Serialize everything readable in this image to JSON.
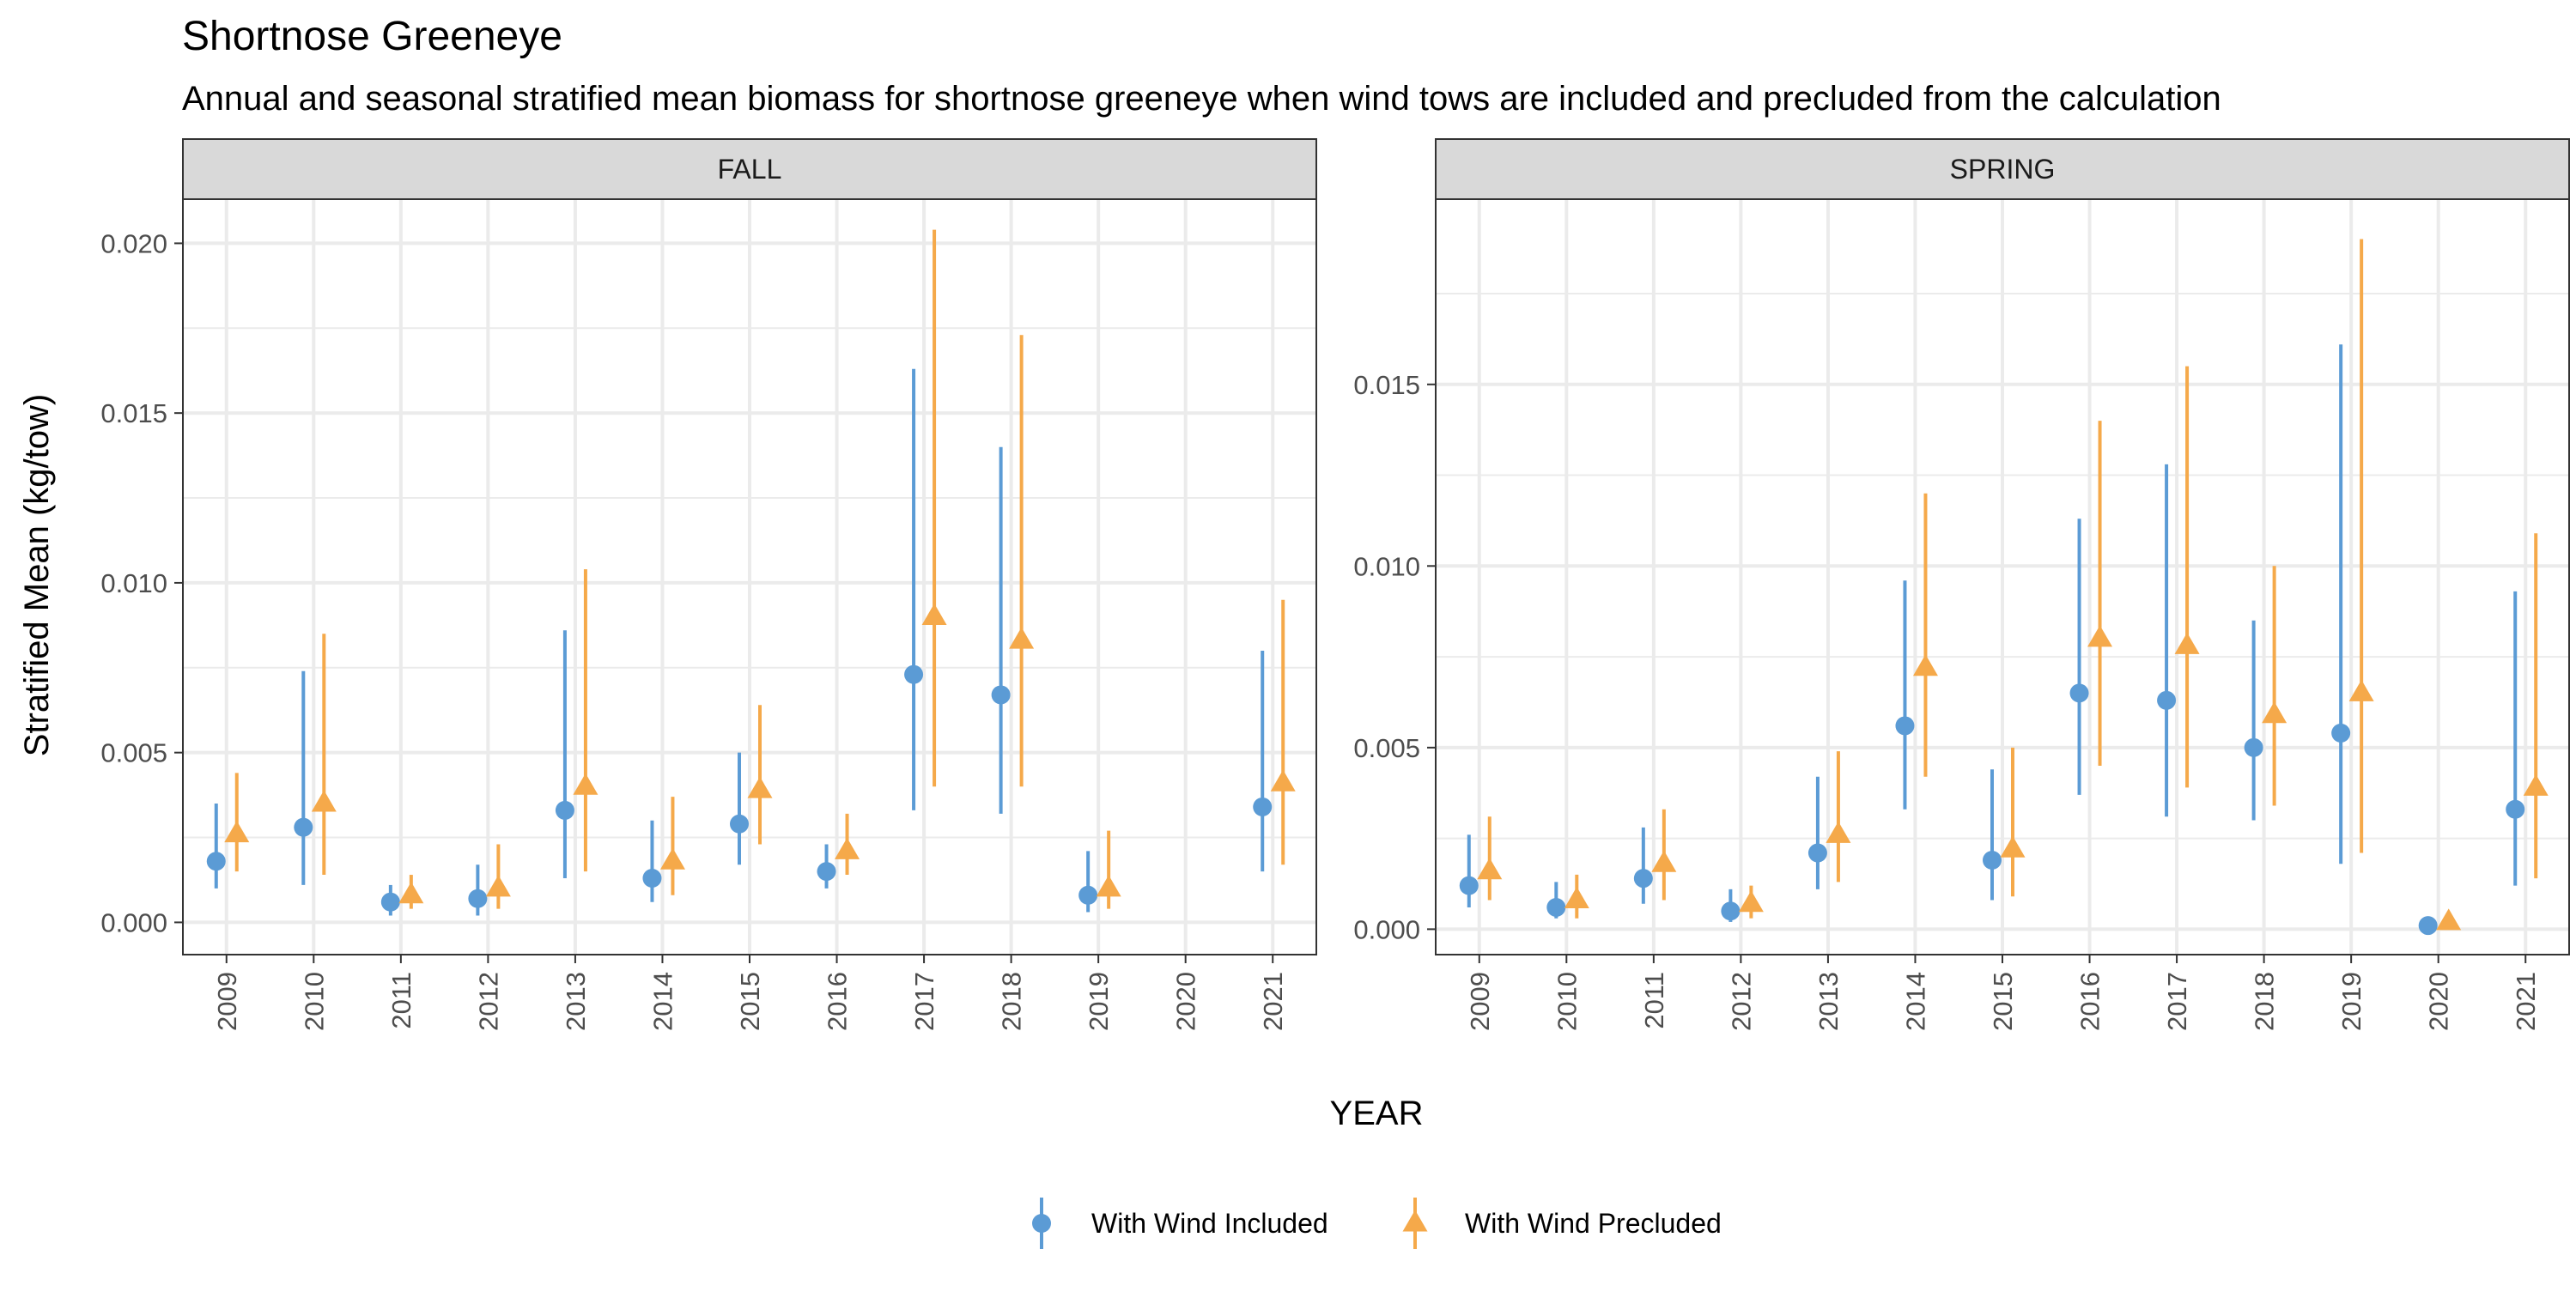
{
  "colors": {
    "included": "#5B9BD5",
    "precluded": "#F5A94A",
    "grid": "#EBEBEB",
    "strip_fill": "#D9D9D9",
    "axis_text": "#4D4D4D"
  },
  "chart_data": {
    "type": "scatter",
    "title": "Shortnose Greeneye",
    "subtitle": "Annual and seasonal stratified mean biomass for shortnose greeneye when wind tows are included and precluded from the calculation",
    "xlabel": "YEAR",
    "ylabel": "Stratified Mean (kg/tow)",
    "legend_position": "bottom",
    "grid": true,
    "legend": [
      {
        "name": "With Wind Included",
        "shape": "circle",
        "color_key": "included"
      },
      {
        "name": "With Wind Precluded",
        "shape": "triangle",
        "color_key": "precluded"
      }
    ],
    "x_categories": [
      "2009",
      "2010",
      "2011",
      "2012",
      "2013",
      "2014",
      "2015",
      "2016",
      "2017",
      "2018",
      "2019",
      "2020",
      "2021"
    ],
    "panels": [
      {
        "label": "FALL",
        "ylim": [
          -0.00095,
          0.0213
        ],
        "yticks": [
          0.0,
          0.005,
          0.01,
          0.015,
          0.02
        ],
        "ytick_labels": [
          "0.000",
          "0.005",
          "0.010",
          "0.015",
          "0.020"
        ],
        "series": [
          {
            "name": "With Wind Included",
            "points": [
              {
                "x": "2009",
                "y": 0.0018,
                "lo": 0.001,
                "hi": 0.0035
              },
              {
                "x": "2010",
                "y": 0.0028,
                "lo": 0.0011,
                "hi": 0.0074
              },
              {
                "x": "2011",
                "y": 0.0006,
                "lo": 0.0002,
                "hi": 0.0011
              },
              {
                "x": "2012",
                "y": 0.0007,
                "lo": 0.0002,
                "hi": 0.0017
              },
              {
                "x": "2013",
                "y": 0.0033,
                "lo": 0.0013,
                "hi": 0.0086
              },
              {
                "x": "2014",
                "y": 0.0013,
                "lo": 0.0006,
                "hi": 0.003
              },
              {
                "x": "2015",
                "y": 0.0029,
                "lo": 0.0017,
                "hi": 0.005
              },
              {
                "x": "2016",
                "y": 0.0015,
                "lo": 0.001,
                "hi": 0.0023
              },
              {
                "x": "2017",
                "y": 0.0073,
                "lo": 0.0033,
                "hi": 0.0163
              },
              {
                "x": "2018",
                "y": 0.0067,
                "lo": 0.0032,
                "hi": 0.014
              },
              {
                "x": "2019",
                "y": 0.0008,
                "lo": 0.0003,
                "hi": 0.0021
              },
              {
                "x": "2021",
                "y": 0.0034,
                "lo": 0.0015,
                "hi": 0.008
              }
            ]
          },
          {
            "name": "With Wind Precluded",
            "points": [
              {
                "x": "2009",
                "y": 0.0026,
                "lo": 0.0015,
                "hi": 0.0044
              },
              {
                "x": "2010",
                "y": 0.0035,
                "lo": 0.0014,
                "hi": 0.0085
              },
              {
                "x": "2011",
                "y": 0.0008,
                "lo": 0.0004,
                "hi": 0.0014
              },
              {
                "x": "2012",
                "y": 0.001,
                "lo": 0.0004,
                "hi": 0.0023
              },
              {
                "x": "2013",
                "y": 0.004,
                "lo": 0.0015,
                "hi": 0.0104
              },
              {
                "x": "2014",
                "y": 0.0018,
                "lo": 0.0008,
                "hi": 0.0037
              },
              {
                "x": "2015",
                "y": 0.0039,
                "lo": 0.0023,
                "hi": 0.0064
              },
              {
                "x": "2016",
                "y": 0.0021,
                "lo": 0.0014,
                "hi": 0.0032
              },
              {
                "x": "2017",
                "y": 0.009,
                "lo": 0.004,
                "hi": 0.0204
              },
              {
                "x": "2018",
                "y": 0.0083,
                "lo": 0.004,
                "hi": 0.0173
              },
              {
                "x": "2019",
                "y": 0.001,
                "lo": 0.0004,
                "hi": 0.0027
              },
              {
                "x": "2021",
                "y": 0.0041,
                "lo": 0.0017,
                "hi": 0.0095
              }
            ]
          }
        ]
      },
      {
        "label": "SPRING",
        "ylim": [
          -0.0007,
          0.0201
        ],
        "yticks": [
          0.0,
          0.005,
          0.01,
          0.015
        ],
        "ytick_labels": [
          "0.000",
          "0.005",
          "0.010",
          "0.015"
        ],
        "series": [
          {
            "name": "With Wind Included",
            "points": [
              {
                "x": "2009",
                "y": 0.0012,
                "lo": 0.0006,
                "hi": 0.0026
              },
              {
                "x": "2010",
                "y": 0.0006,
                "lo": 0.0003,
                "hi": 0.0013
              },
              {
                "x": "2011",
                "y": 0.0014,
                "lo": 0.0007,
                "hi": 0.0028
              },
              {
                "x": "2012",
                "y": 0.0005,
                "lo": 0.0002,
                "hi": 0.0011
              },
              {
                "x": "2013",
                "y": 0.0021,
                "lo": 0.0011,
                "hi": 0.0042
              },
              {
                "x": "2014",
                "y": 0.0056,
                "lo": 0.0033,
                "hi": 0.0096
              },
              {
                "x": "2015",
                "y": 0.0019,
                "lo": 0.0008,
                "hi": 0.0044
              },
              {
                "x": "2016",
                "y": 0.0065,
                "lo": 0.0037,
                "hi": 0.0113
              },
              {
                "x": "2017",
                "y": 0.0063,
                "lo": 0.0031,
                "hi": 0.0128
              },
              {
                "x": "2018",
                "y": 0.005,
                "lo": 0.003,
                "hi": 0.0085
              },
              {
                "x": "2019",
                "y": 0.0054,
                "lo": 0.0018,
                "hi": 0.0161
              },
              {
                "x": "2020",
                "y": 0.0001,
                "lo": 5e-05,
                "hi": 0.00015
              },
              {
                "x": "2021",
                "y": 0.0033,
                "lo": 0.0012,
                "hi": 0.0093
              }
            ]
          },
          {
            "name": "With Wind Precluded",
            "points": [
              {
                "x": "2009",
                "y": 0.0016,
                "lo": 0.0008,
                "hi": 0.0031
              },
              {
                "x": "2010",
                "y": 0.0008,
                "lo": 0.0003,
                "hi": 0.0015
              },
              {
                "x": "2011",
                "y": 0.0018,
                "lo": 0.0008,
                "hi": 0.0033
              },
              {
                "x": "2012",
                "y": 0.0007,
                "lo": 0.0003,
                "hi": 0.0012
              },
              {
                "x": "2013",
                "y": 0.0026,
                "lo": 0.0013,
                "hi": 0.0049
              },
              {
                "x": "2014",
                "y": 0.0072,
                "lo": 0.0042,
                "hi": 0.012
              },
              {
                "x": "2015",
                "y": 0.0022,
                "lo": 0.0009,
                "hi": 0.005
              },
              {
                "x": "2016",
                "y": 0.008,
                "lo": 0.0045,
                "hi": 0.014
              },
              {
                "x": "2017",
                "y": 0.0078,
                "lo": 0.0039,
                "hi": 0.0155
              },
              {
                "x": "2018",
                "y": 0.0059,
                "lo": 0.0034,
                "hi": 0.01
              },
              {
                "x": "2019",
                "y": 0.0065,
                "lo": 0.0021,
                "hi": 0.019
              },
              {
                "x": "2020",
                "y": 0.0002,
                "lo": 0.0001,
                "hi": 0.0003
              },
              {
                "x": "2021",
                "y": 0.0039,
                "lo": 0.0014,
                "hi": 0.0109
              }
            ]
          }
        ]
      }
    ]
  }
}
